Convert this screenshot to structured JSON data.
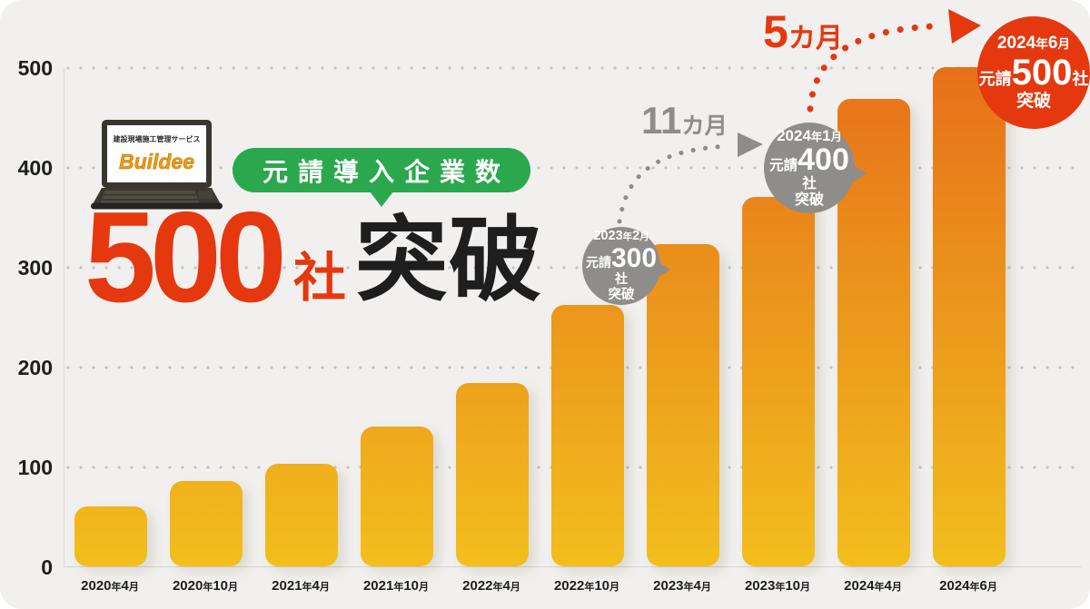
{
  "page": {
    "background": "#F1F0EE"
  },
  "logo": {
    "tagline": "建設現場施工管理サービス",
    "brand": "Buildee",
    "brand_color": "#F0990F"
  },
  "headline": {
    "badge": "元請導入企業数",
    "badge_color": "#2BA84D",
    "number": "500",
    "counter": "社",
    "suffix": "突破",
    "accent_color": "#E5380E",
    "ink_color": "#1E1E1E"
  },
  "milestones": [
    {
      "date": "2023年2月",
      "prefix": "元請",
      "number": "300",
      "unit": "社",
      "suffix": "突破",
      "color": "#8E8D8B"
    },
    {
      "date": "2024年1月",
      "prefix": "元請",
      "number": "400",
      "unit": "社",
      "suffix": "突破",
      "color": "#8E8D8B"
    },
    {
      "date": "2024年6月",
      "prefix": "元請",
      "number": "500",
      "unit": "社",
      "suffix": "突破",
      "color": "#E5380E"
    }
  ],
  "intervals": [
    {
      "label": "11カ月",
      "color": "#8E8D8B"
    },
    {
      "label": "5カ月",
      "color": "#E5380E"
    }
  ],
  "chart_data": {
    "type": "bar",
    "title": "元請導入企業数 500社突破",
    "categories": [
      "2020年4月",
      "2020年10月",
      "2021年4月",
      "2021年10月",
      "2022年4月",
      "2022年10月",
      "2023年4月",
      "2023年10月",
      "2024年4月",
      "2024年6月"
    ],
    "values": [
      60,
      85,
      103,
      140,
      184,
      262,
      323,
      370,
      468,
      500
    ],
    "yticks": [
      0,
      100,
      200,
      300,
      400,
      500
    ],
    "ylim": [
      0,
      500
    ],
    "xlabel": "",
    "ylabel": "",
    "grid": "horizontal-dotted",
    "legend": "none",
    "bar_gradient_top": "#E7701A",
    "bar_gradient_bottom": "#F2BE1D",
    "annotations": [
      {
        "at": "2023年2月",
        "text": "元請300社突破"
      },
      {
        "at": "2024年1月",
        "text": "元請400社突破"
      },
      {
        "at": "2024年6月",
        "text": "元請500社突破"
      },
      {
        "between": [
          "300社",
          "400社"
        ],
        "text": "11カ月"
      },
      {
        "between": [
          "400社",
          "500社"
        ],
        "text": "5カ月"
      }
    ]
  }
}
